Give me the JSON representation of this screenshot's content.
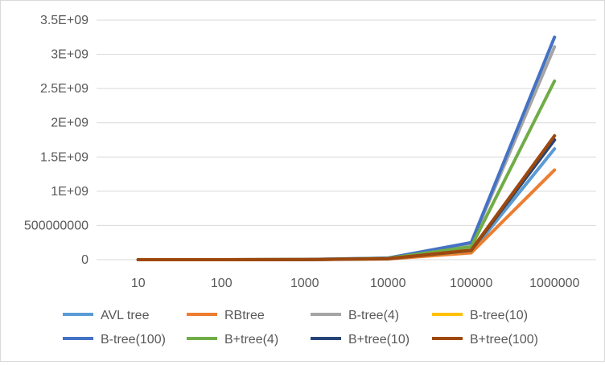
{
  "chart_data": {
    "type": "line",
    "categories": [
      "10",
      "100",
      "1000",
      "10000",
      "100000",
      "1000000"
    ],
    "ylim": [
      0,
      3500000000
    ],
    "y_ticks": [
      {
        "value": 0,
        "label": "0"
      },
      {
        "value": 500000000,
        "label": "500000000"
      },
      {
        "value": 1000000000,
        "label": "1E+09"
      },
      {
        "value": 1500000000,
        "label": "1.5E+09"
      },
      {
        "value": 2000000000,
        "label": "2E+09"
      },
      {
        "value": 2500000000,
        "label": "2.5E+09"
      },
      {
        "value": 3000000000,
        "label": "3E+09"
      },
      {
        "value": 3500000000,
        "label": "3.5E+09"
      }
    ],
    "grid": true,
    "legend_position": "bottom",
    "series": [
      {
        "name": "AVL tree",
        "color": "#5B9BD5",
        "values": [
          0,
          100000,
          1200000,
          12000000,
          110000000,
          1620000000
        ]
      },
      {
        "name": "RBtree",
        "color": "#ED7D31",
        "values": [
          0,
          90000,
          1000000,
          10000000,
          100000000,
          1310000000
        ]
      },
      {
        "name": "B-tree(4)",
        "color": "#A5A5A5",
        "values": [
          0,
          200000,
          2000000,
          22000000,
          240000000,
          3110000000
        ]
      },
      {
        "name": "B-tree(10)",
        "color": "#FFC000",
        "values": [
          0,
          120000,
          1300000,
          14000000,
          130000000,
          1750000000
        ]
      },
      {
        "name": "B-tree(100)",
        "color": "#4472C4",
        "values": [
          0,
          210000,
          2200000,
          24000000,
          250000000,
          3250000000
        ]
      },
      {
        "name": "B+tree(4)",
        "color": "#70AD47",
        "values": [
          0,
          170000,
          1800000,
          19000000,
          190000000,
          2610000000
        ]
      },
      {
        "name": "B+tree(10)",
        "color": "#264478",
        "values": [
          0,
          130000,
          1300000,
          14000000,
          135000000,
          1750000000
        ]
      },
      {
        "name": "B+tree(100)",
        "color": "#9E480E",
        "values": [
          0,
          135000,
          1400000,
          15000000,
          140000000,
          1810000000
        ]
      }
    ]
  }
}
